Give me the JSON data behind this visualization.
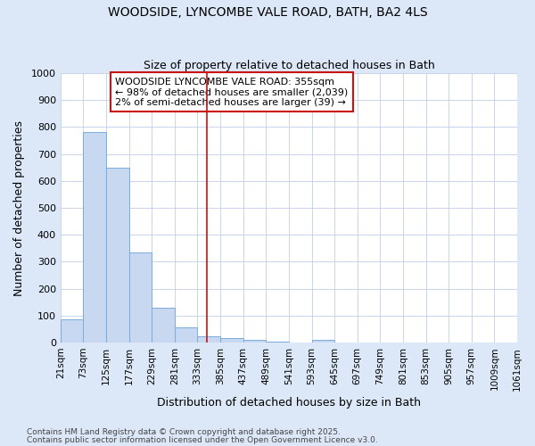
{
  "title1": "WOODSIDE, LYNCOMBE VALE ROAD, BATH, BA2 4LS",
  "title2": "Size of property relative to detached houses in Bath",
  "xlabel": "Distribution of detached houses by size in Bath",
  "ylabel": "Number of detached properties",
  "bins": [
    21,
    73,
    125,
    177,
    229,
    281,
    333,
    385,
    437,
    489,
    541,
    593,
    645,
    697,
    749,
    801,
    853,
    905,
    957,
    1009,
    1061
  ],
  "values": [
    85,
    780,
    650,
    335,
    130,
    58,
    22,
    18,
    9,
    5,
    0,
    10,
    0,
    0,
    0,
    0,
    0,
    0,
    0,
    0
  ],
  "bar_color": "#c8d8f0",
  "bar_edge_color": "#7aacdc",
  "vline_x": 355,
  "vline_color": "#cc1111",
  "annotation_title": "WOODSIDE LYNCOMBE VALE ROAD: 355sqm",
  "annotation_line1": "← 98% of detached houses are smaller (2,039)",
  "annotation_line2": "2% of semi-detached houses are larger (39) →",
  "annotation_box_color": "#cc1111",
  "ylim": [
    0,
    1000
  ],
  "yticks": [
    0,
    100,
    200,
    300,
    400,
    500,
    600,
    700,
    800,
    900,
    1000
  ],
  "footer1": "Contains HM Land Registry data © Crown copyright and database right 2025.",
  "footer2": "Contains public sector information licensed under the Open Government Licence v3.0.",
  "fig_bg_color": "#dce8f8",
  "plot_bg_color": "#ffffff",
  "grid_color": "#c0cfe8"
}
